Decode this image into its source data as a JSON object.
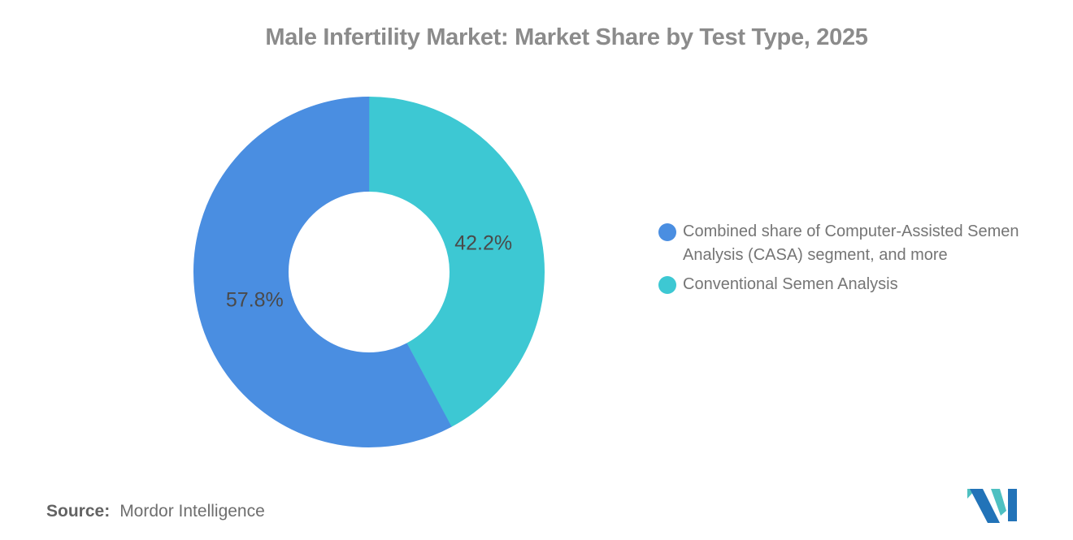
{
  "chart_data": {
    "type": "pie",
    "variant": "donut",
    "title": "Male Infertility Market: Market Share by Test Type, 2025",
    "unit": "%",
    "slices": [
      {
        "name": "Combined share of Computer-Assisted Semen Analysis (CASA) segment, and more",
        "value": 57.8,
        "label": "57.8%",
        "color": "#4A8EE1"
      },
      {
        "name": "Conventional Semen Analysis",
        "value": 42.2,
        "label": "42.2%",
        "color": "#3DC8D3"
      }
    ],
    "draw_order": [
      1,
      0
    ],
    "start_angle": "top",
    "direction": "clockwise",
    "inner_radius_ratio": 0.46,
    "labels_inside": true,
    "legend_position": "right"
  },
  "footer": {
    "source_label": "Source:",
    "source_value": "Mordor Intelligence"
  },
  "logo": {
    "alt": "mordor-intelligence-logo",
    "blue": "#2273B8",
    "teal": "#4EC0C1"
  },
  "theme": {
    "background": "#FFFFFF",
    "title_color": "#8B8B8B",
    "slice_label_color": "#4A4A4A",
    "legend_text_color": "#757575",
    "source_text_color": "#6E6E6E"
  }
}
